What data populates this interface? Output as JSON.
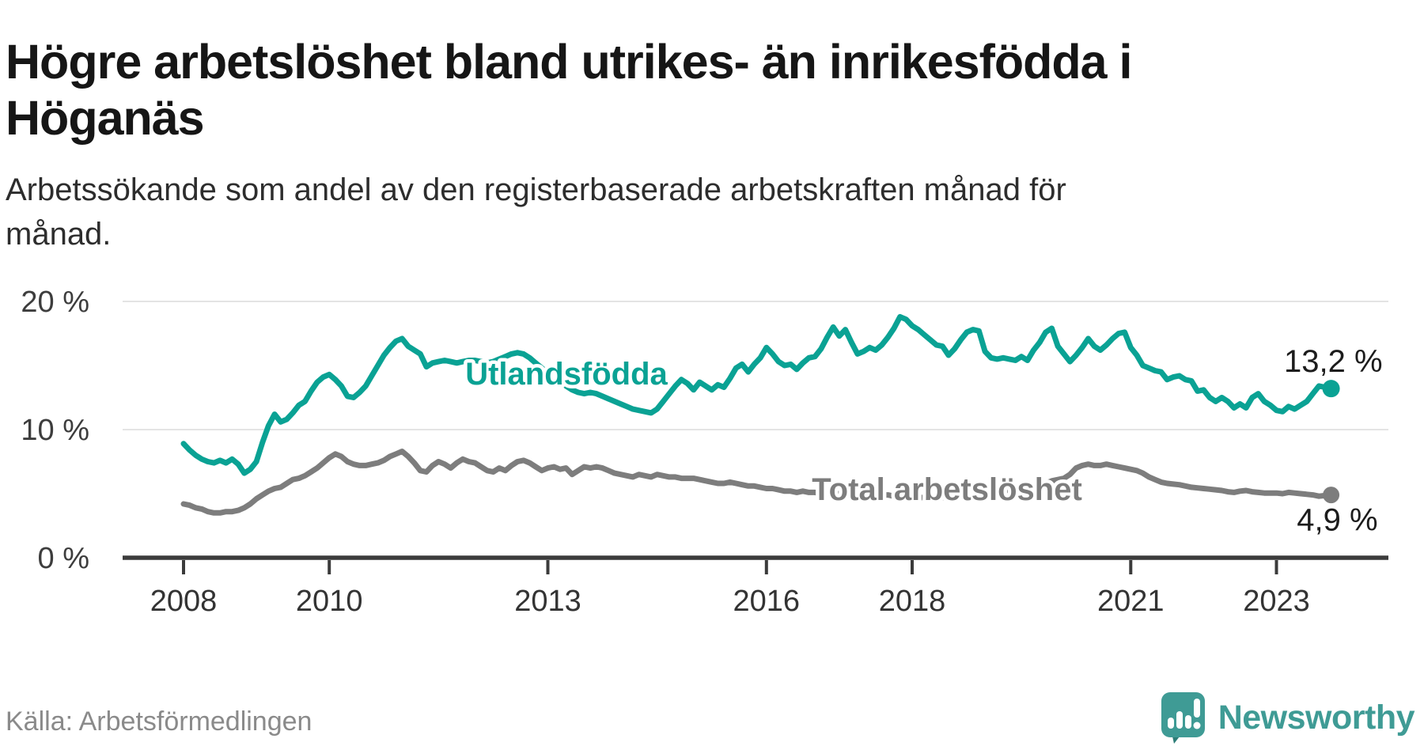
{
  "title": {
    "line1": "Högre arbetslöshet bland utrikes- än inrikesfödda i",
    "line2": "Höganäs"
  },
  "subtitle": {
    "line1": "Arbetssökande som andel av den registerbaserade arbetskraften månad för",
    "line2": "månad."
  },
  "source_note": "Källa: Arbetsförmedlingen",
  "branding": {
    "logo_text": "Newsworthy",
    "logo_color": "#3f9b95",
    "logo_tail_color": "#2c7d77"
  },
  "chart_data": {
    "type": "line",
    "title": "Högre arbetslöshet bland utrikes- än inrikesfödda i Höganäs",
    "subtitle": "Arbetssökande som andel av den registerbaserade arbetskraften månad för månad.",
    "x_unit": "month",
    "x_range": "2008-01 till 2023-10",
    "x_start_year": 2008,
    "x_tick_years": [
      2008,
      2010,
      2013,
      2016,
      2018,
      2021,
      2023
    ],
    "y_ticks": [
      {
        "value": 20,
        "label": "20 %"
      },
      {
        "value": 10,
        "label": "10 %"
      },
      {
        "value": 0,
        "label": "0 %"
      }
    ],
    "ylim": [
      0,
      22
    ],
    "grid": "horizontal",
    "axis_color": "#3b3b3b",
    "grid_color": "#e4e4e4",
    "series": [
      {
        "name": "Utlandsfödda",
        "color": "#0aa294",
        "end_label": "13,2 %",
        "end_value": 13.2,
        "values": [
          8.9,
          8.4,
          8.0,
          7.7,
          7.5,
          7.4,
          7.6,
          7.4,
          7.7,
          7.3,
          6.6,
          6.9,
          7.5,
          9.0,
          10.3,
          11.2,
          10.6,
          10.8,
          11.3,
          11.9,
          12.2,
          13.0,
          13.7,
          14.1,
          14.3,
          13.9,
          13.4,
          12.6,
          12.5,
          12.9,
          13.4,
          14.2,
          15.0,
          15.8,
          16.4,
          16.9,
          17.1,
          16.5,
          16.2,
          15.9,
          14.9,
          15.2,
          15.3,
          15.4,
          15.3,
          15.2,
          15.3,
          15.4,
          15.4,
          15.3,
          15.2,
          15.3,
          15.5,
          15.7,
          15.9,
          16.0,
          15.9,
          15.6,
          15.2,
          14.8,
          14.4,
          14.1,
          13.8,
          13.4,
          13.1,
          12.9,
          12.8,
          12.9,
          12.8,
          12.6,
          12.4,
          12.2,
          12.0,
          11.8,
          11.6,
          11.5,
          11.4,
          11.3,
          11.6,
          12.2,
          12.8,
          13.4,
          13.9,
          13.6,
          13.1,
          13.7,
          13.4,
          13.1,
          13.5,
          13.3,
          14.0,
          14.8,
          15.1,
          14.5,
          15.1,
          15.6,
          16.4,
          15.9,
          15.3,
          15.0,
          15.1,
          14.7,
          15.2,
          15.6,
          15.7,
          16.3,
          17.2,
          18.0,
          17.3,
          17.8,
          16.8,
          15.9,
          16.1,
          16.4,
          16.2,
          16.6,
          17.2,
          17.9,
          18.8,
          18.6,
          18.1,
          17.8,
          17.4,
          17.0,
          16.6,
          16.5,
          15.8,
          16.3,
          17.0,
          17.6,
          17.8,
          17.7,
          16.1,
          15.6,
          15.5,
          15.6,
          15.5,
          15.4,
          15.7,
          15.4,
          16.2,
          16.8,
          17.6,
          17.9,
          16.5,
          15.9,
          15.3,
          15.8,
          16.4,
          17.1,
          16.5,
          16.2,
          16.6,
          17.1,
          17.5,
          17.6,
          16.4,
          15.8,
          15.0,
          14.8,
          14.6,
          14.5,
          13.9,
          14.1,
          14.2,
          13.9,
          13.8,
          13.0,
          13.1,
          12.5,
          12.2,
          12.5,
          12.2,
          11.7,
          12.0,
          11.7,
          12.5,
          12.8,
          12.2,
          11.9,
          11.5,
          11.4,
          11.8,
          11.6,
          11.9,
          12.2,
          12.8,
          13.4,
          13.3,
          13.2
        ]
      },
      {
        "name": "Total arbetslöshet",
        "color": "#7d7d7d",
        "end_label": "4,9 %",
        "end_value": 4.9,
        "values": [
          4.2,
          4.1,
          3.9,
          3.8,
          3.6,
          3.5,
          3.5,
          3.6,
          3.6,
          3.7,
          3.9,
          4.2,
          4.6,
          4.9,
          5.2,
          5.4,
          5.5,
          5.8,
          6.1,
          6.2,
          6.4,
          6.7,
          7.0,
          7.4,
          7.8,
          8.1,
          7.9,
          7.5,
          7.3,
          7.2,
          7.2,
          7.3,
          7.4,
          7.6,
          7.9,
          8.1,
          8.3,
          7.9,
          7.4,
          6.8,
          6.7,
          7.2,
          7.5,
          7.3,
          7.0,
          7.4,
          7.7,
          7.5,
          7.4,
          7.1,
          6.8,
          6.7,
          7.0,
          6.8,
          7.2,
          7.5,
          7.6,
          7.4,
          7.1,
          6.8,
          7.0,
          7.1,
          6.9,
          7.0,
          6.5,
          6.8,
          7.1,
          7.0,
          7.1,
          7.0,
          6.8,
          6.6,
          6.5,
          6.4,
          6.3,
          6.5,
          6.4,
          6.3,
          6.5,
          6.4,
          6.3,
          6.3,
          6.2,
          6.2,
          6.2,
          6.1,
          6.0,
          5.9,
          5.8,
          5.8,
          5.9,
          5.8,
          5.7,
          5.6,
          5.6,
          5.5,
          5.4,
          5.4,
          5.3,
          5.2,
          5.2,
          5.1,
          5.2,
          5.1,
          5.1,
          5.0,
          5.0,
          5.0,
          5.0,
          4.9,
          4.9,
          4.9,
          4.8,
          4.9,
          5.0,
          4.9,
          4.9,
          4.8,
          4.8,
          4.8,
          4.8,
          4.7,
          4.7,
          4.7,
          4.6,
          4.7,
          4.8,
          4.8,
          4.9,
          4.9,
          5.0,
          5.0,
          5.1,
          5.1,
          5.2,
          5.2,
          5.3,
          5.4,
          5.5,
          5.5,
          5.6,
          5.7,
          5.8,
          6.0,
          6.1,
          6.2,
          6.5,
          7.0,
          7.2,
          7.3,
          7.2,
          7.2,
          7.3,
          7.2,
          7.1,
          7.0,
          6.9,
          6.8,
          6.6,
          6.3,
          6.1,
          5.9,
          5.8,
          5.75,
          5.7,
          5.6,
          5.5,
          5.45,
          5.4,
          5.35,
          5.3,
          5.25,
          5.15,
          5.1,
          5.2,
          5.25,
          5.15,
          5.1,
          5.05,
          5.05,
          5.05,
          5.0,
          5.1,
          5.05,
          5.0,
          4.95,
          4.9,
          4.8,
          4.85,
          4.9
        ]
      }
    ],
    "legend_position": "inline-on-lines"
  }
}
